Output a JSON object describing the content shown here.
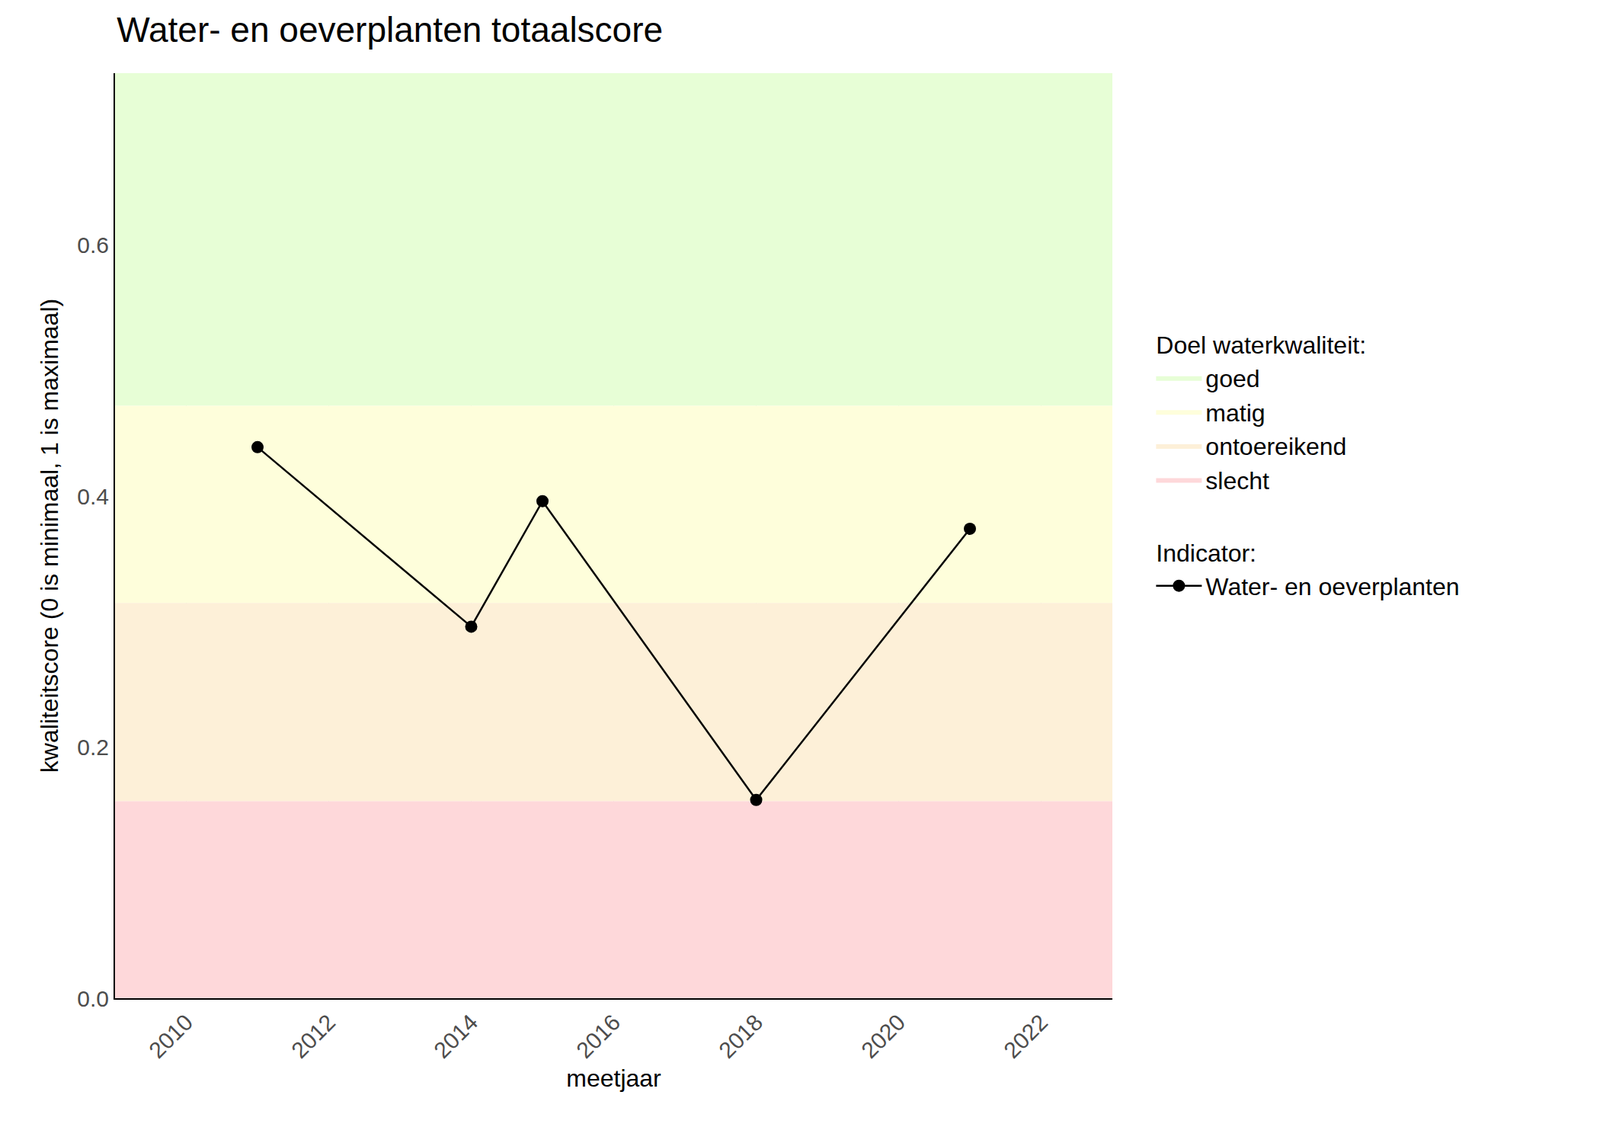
{
  "chart_data": {
    "type": "line",
    "title": "Water- en oeverplanten totaalscore",
    "x_label": "meetjaar",
    "y_label": "kwaliteitscore (0 is minimaal, 1 is maximaal)",
    "x": [
      2011,
      2014,
      2015,
      2018,
      2021
    ],
    "series": [
      {
        "name": "Water- en oeverplanten",
        "color": "#000000",
        "values": [
          0.439,
          0.296,
          0.396,
          0.158,
          0.374
        ],
        "marker": "circle",
        "line_style": "solid"
      }
    ],
    "legend_title": "Indicator:",
    "bands_title": "Doel waterkwaliteit:",
    "bands": [
      {
        "name": "goed",
        "color": "#e7fed6",
        "from": 0.472,
        "to": 0.737
      },
      {
        "name": "matig",
        "color": "#fefedb",
        "from": 0.315,
        "to": 0.472
      },
      {
        "name": "ontoereikend",
        "color": "#fdf0d8",
        "from": 0.157,
        "to": 0.315
      },
      {
        "name": "slecht",
        "color": "#fed8da",
        "from": 0,
        "to": 0.157
      }
    ],
    "xlim": [
      2009,
      2023
    ],
    "xticks": [
      2010,
      2012,
      2014,
      2016,
      2018,
      2020,
      2022
    ],
    "ylim": [
      0,
      0.737
    ],
    "yticks": [
      {
        "value": 0,
        "label": "0.0"
      },
      {
        "value": 0.2,
        "label": "0.2"
      },
      {
        "value": 0.4,
        "label": "0.4"
      },
      {
        "value": 0.6,
        "label": "0.6"
      }
    ],
    "grid": true,
    "legend": "right"
  }
}
